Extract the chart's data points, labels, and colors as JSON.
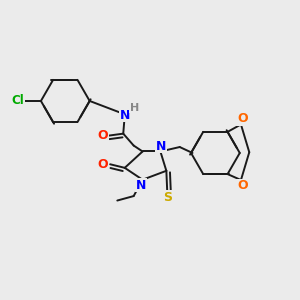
{
  "background_color": "#ebebeb",
  "figsize": [
    3.0,
    3.0
  ],
  "dpi": 100,
  "bond_color": "#1a1a1a",
  "bond_lw": 1.4,
  "atom_colors": {
    "Cl": "#00aa00",
    "N": "#0000ff",
    "H": "#888888",
    "O": "#ff2200",
    "S": "#ccaa00",
    "O_benzo": "#ff6600"
  }
}
